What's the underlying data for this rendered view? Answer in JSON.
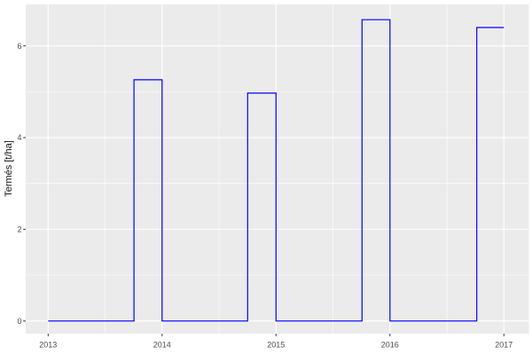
{
  "figure": {
    "background": "#FFFFFF"
  },
  "chart_data": {
    "type": "line",
    "line_style": "step",
    "title": "",
    "subtitle": "",
    "xlabel": "",
    "ylabel": "Termés [t/ha]",
    "legend": "none",
    "grid": "on",
    "theme": "ggplot2-grey",
    "x_axis": {
      "range": [
        2012.8,
        2017.22
      ],
      "major_ticks": [
        2013,
        2014,
        2015,
        2016,
        2017
      ],
      "tick_labels": [
        "2013",
        "2014",
        "2015",
        "2016",
        "2017"
      ],
      "minor_ticks": [
        2013.5,
        2014.5,
        2015.5,
        2016.5
      ]
    },
    "y_axis": {
      "range": [
        -0.28,
        6.91
      ],
      "major_ticks": [
        0,
        2,
        4,
        6
      ],
      "tick_labels": [
        "0",
        "2",
        "4",
        "6"
      ],
      "minor_ticks": [
        1,
        3,
        5
      ]
    },
    "series": [
      {
        "name": "Termés",
        "color": "#0000FF",
        "steps": [
          {
            "x_start": 2013.0,
            "x_end": 2013.753,
            "value": 0
          },
          {
            "x_start": 2013.753,
            "x_end": 2014.0,
            "value": 5.26
          },
          {
            "x_start": 2014.0,
            "x_end": 2014.751,
            "value": 0
          },
          {
            "x_start": 2014.751,
            "x_end": 2015.0,
            "value": 4.97
          },
          {
            "x_start": 2015.0,
            "x_end": 2015.755,
            "value": 0
          },
          {
            "x_start": 2015.755,
            "x_end": 2016.0,
            "value": 6.57
          },
          {
            "x_start": 2016.0,
            "x_end": 2016.762,
            "value": 0
          },
          {
            "x_start": 2016.762,
            "x_end": 2017.0,
            "value": 6.4
          }
        ]
      }
    ],
    "style": {
      "panel_bg": "#EBEBEB",
      "grid_major_color": "#FFFFFF",
      "grid_minor_color": "#FFFFFF",
      "tick_mark_color": "#333333",
      "tick_label_color": "#4D4D4D",
      "axis_title_color": "#111111",
      "line_color": "#0000FF"
    }
  }
}
